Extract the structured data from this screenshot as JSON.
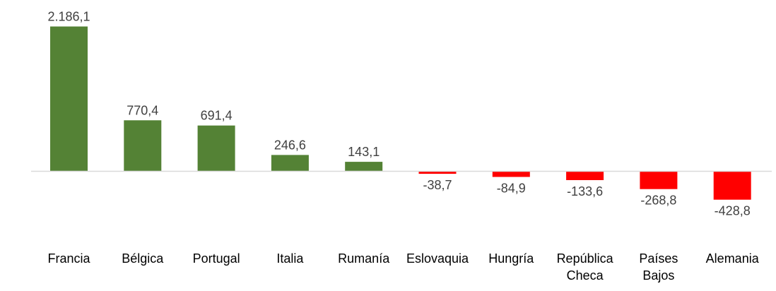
{
  "chart_data": {
    "type": "bar",
    "categories": [
      "Francia",
      "Bélgica",
      "Portugal",
      "Italia",
      "Rumanía",
      "Eslovaquia",
      "Hungría",
      "República Checa",
      "Países Bajos",
      "Alemania"
    ],
    "category_lines": [
      [
        "Francia"
      ],
      [
        "Bélgica"
      ],
      [
        "Portugal"
      ],
      [
        "Italia"
      ],
      [
        "Rumanía"
      ],
      [
        "Eslovaquia"
      ],
      [
        "Hungría"
      ],
      [
        "República",
        "Checa"
      ],
      [
        "Países",
        "Bajos"
      ],
      [
        "Alemania"
      ]
    ],
    "values": [
      2186.1,
      770.4,
      691.4,
      246.6,
      143.1,
      -38.7,
      -84.9,
      -133.6,
      -268.8,
      -428.8
    ],
    "value_labels": [
      "2.186,1",
      "770,4",
      "691,4",
      "246,6",
      "143,1",
      "-38,7",
      "-84,9",
      "-133,6",
      "-268,8",
      "-428,8"
    ],
    "colors": {
      "positive": "#548235",
      "negative": "#ff0000",
      "axis": "#d9d9d9"
    },
    "title": "",
    "xlabel": "",
    "ylabel": "",
    "ylim": [
      -430,
      2190
    ],
    "grid": false,
    "legend": "none"
  }
}
